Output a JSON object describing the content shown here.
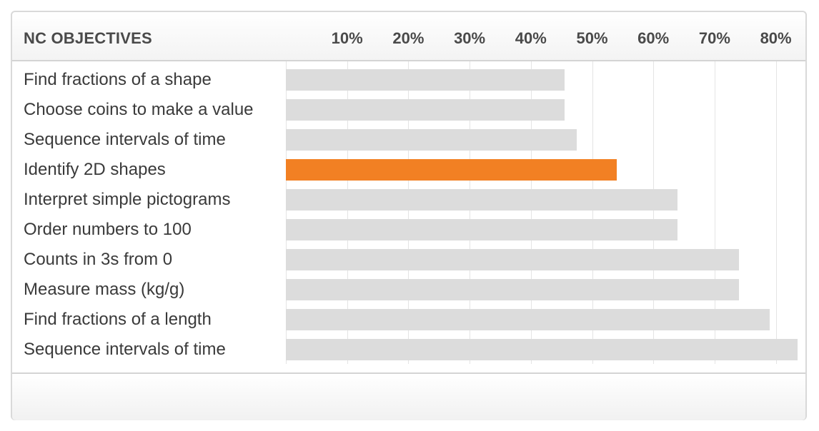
{
  "header": {
    "title": "NC OBJECTIVES"
  },
  "chart_data": {
    "type": "bar",
    "orientation": "horizontal",
    "title": "",
    "xlabel": "",
    "ylabel": "",
    "tick_labels": [
      "10%",
      "20%",
      "30%",
      "40%",
      "50%",
      "60%",
      "70%",
      "80%"
    ],
    "xlim": [
      0,
      82
    ],
    "grid": true,
    "categories": [
      "Find fractions of a shape",
      "Choose coins to make a value",
      "Sequence intervals of time",
      "Identify 2D shapes",
      "Interpret simple pictograms",
      "Order numbers to 100",
      "Counts in 3s from 0",
      "Measure mass (kg/g)",
      "Find fractions of a length",
      "Sequence intervals of time"
    ],
    "values": [
      45.5,
      45.5,
      47.5,
      54,
      64,
      64,
      74,
      74,
      79,
      83.5
    ],
    "highlight_index": 3,
    "colors": {
      "bar": "#dcdcdc",
      "highlight": "#f28023",
      "grid": "#e4e4e4",
      "text": "#3a3a3a"
    }
  }
}
